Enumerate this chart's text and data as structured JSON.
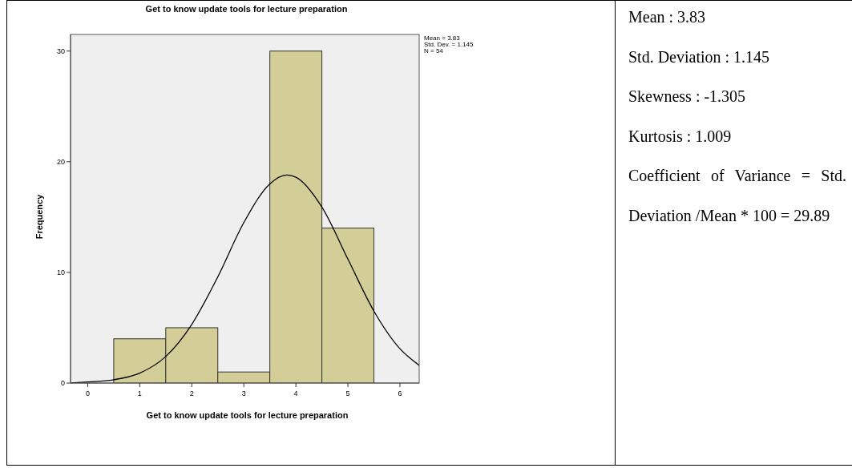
{
  "chart_data": [
    {
      "type": "histogram",
      "title": "Get to know update tools for lecture preparation",
      "xlabel": "Get to know update tools for lecture preparation",
      "ylabel": "Frequency",
      "bins": [
        0.5,
        1.5,
        2.5,
        3.5,
        4.5,
        5.5
      ],
      "series": [
        {
          "type": "histogram",
          "color": "#d3ce97",
          "values": [
            4,
            5,
            1,
            30,
            14
          ]
        },
        {
          "type": "line",
          "color": "#000000",
          "x": [
            -0.33,
            0,
            0.5,
            1,
            1.5,
            2,
            2.5,
            3,
            3.5,
            3.83,
            4,
            4.5,
            5,
            5.5,
            6,
            6.37
          ],
          "values": [
            0.0,
            0.1,
            0.3,
            0.9,
            2.4,
            5.3,
            9.6,
            14.5,
            18.0,
            18.8,
            18.6,
            15.9,
            11.2,
            6.5,
            3.1,
            1.6
          ]
        }
      ],
      "xlim": [
        -0.33,
        6.37
      ],
      "xticks": [
        0,
        1,
        2,
        3,
        4,
        5,
        6
      ],
      "ylim": [
        0,
        31.5
      ],
      "yticks": [
        0,
        10,
        20,
        30
      ],
      "grid": false,
      "marker": "none",
      "annotations": [
        "Mean = 3.83",
        "Std. Dev. = 1.145",
        "N = 54"
      ]
    },
    {
      "type": "other",
      "annotations": [
        "Mean : 3.83",
        "Std. Deviation : 1.145",
        "Skewness : -1.305",
        "Kurtosis : 1.009",
        "Coefficient of Variance = Std. Deviation /Mean * 100 = 29.89"
      ]
    }
  ]
}
